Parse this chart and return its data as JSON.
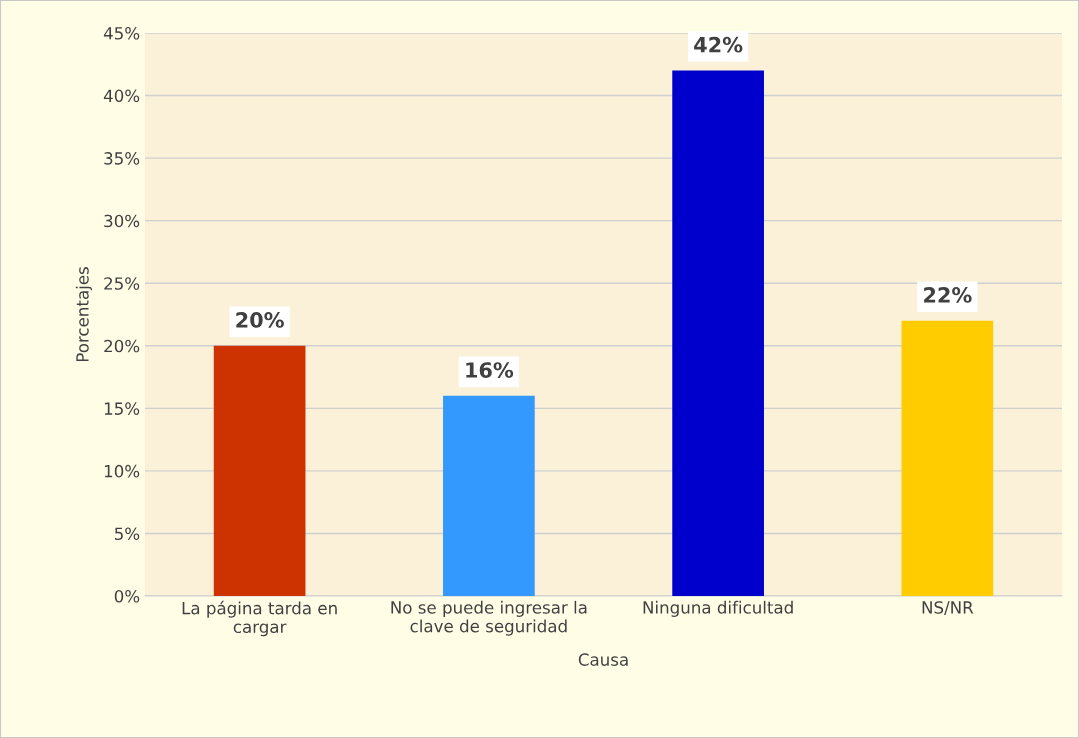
{
  "chart_data": {
    "type": "bar",
    "categories": [
      "La página tarda en\ncargar",
      "No se puede ingresar la\nclave de seguridad",
      "Ninguna dificultad",
      "NS/NR"
    ],
    "values": [
      20,
      16,
      42,
      22
    ],
    "colors": [
      "#cc3300",
      "#3399ff",
      "#0000cc",
      "#ffcc00"
    ],
    "value_labels": [
      "20%",
      "16%",
      "42%",
      "22%"
    ],
    "xlabel": "Causa",
    "ylabel": "Porcentajes",
    "ylim": [
      0,
      45
    ],
    "yticks": [
      {
        "value": 0,
        "label": "0%"
      },
      {
        "value": 5,
        "label": "5%"
      },
      {
        "value": 10,
        "label": "10%"
      },
      {
        "value": 15,
        "label": "15%"
      },
      {
        "value": 20,
        "label": "20%"
      },
      {
        "value": 25,
        "label": "25%"
      },
      {
        "value": 30,
        "label": "30%"
      },
      {
        "value": 35,
        "label": "35%"
      },
      {
        "value": 40,
        "label": "40%"
      },
      {
        "value": 45,
        "label": "45%"
      }
    ],
    "grid": "y",
    "legend": false
  }
}
